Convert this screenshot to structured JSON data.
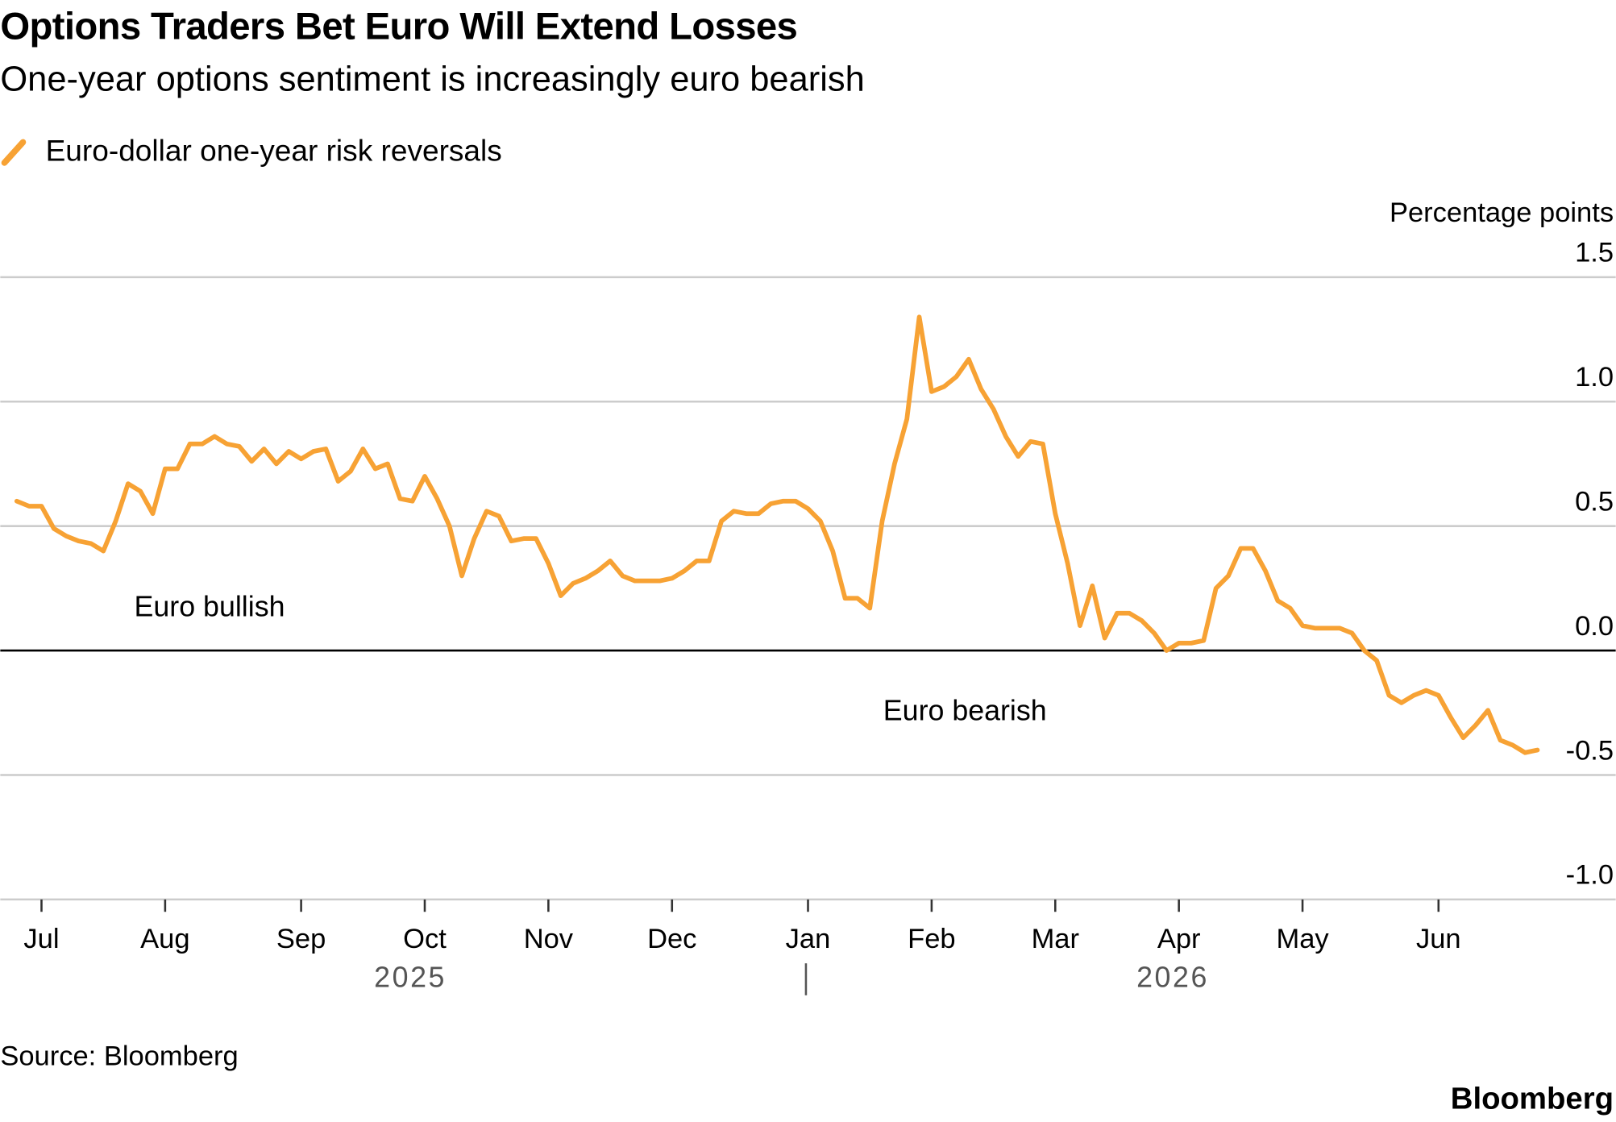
{
  "chart_data": {
    "type": "line",
    "title": "Options Traders Bet Euro Will Extend Losses",
    "subtitle": "One-year options sentiment is increasingly euro bearish",
    "y_label": "Percentage points",
    "categories": [
      null,
      null,
      "Jul",
      null,
      null,
      null,
      null,
      null,
      null,
      null,
      null,
      null,
      "Aug",
      null,
      null,
      null,
      null,
      null,
      null,
      null,
      null,
      null,
      null,
      "Sep",
      null,
      null,
      null,
      null,
      null,
      null,
      null,
      null,
      null,
      "Oct",
      null,
      null,
      null,
      null,
      null,
      null,
      null,
      null,
      null,
      "Nov",
      null,
      null,
      null,
      null,
      null,
      null,
      null,
      null,
      null,
      "Dec",
      null,
      null,
      null,
      null,
      null,
      null,
      null,
      null,
      null,
      null,
      "Jan",
      null,
      null,
      null,
      null,
      null,
      null,
      null,
      null,
      null,
      "Feb",
      null,
      null,
      null,
      null,
      null,
      null,
      null,
      null,
      null,
      "Mar",
      null,
      null,
      null,
      null,
      null,
      null,
      null,
      null,
      null,
      "Apr",
      null,
      null,
      null,
      null,
      null,
      null,
      null,
      null,
      null,
      "May",
      null,
      null,
      null,
      null,
      null,
      null,
      null,
      null,
      null,
      null,
      "Jun",
      null,
      null,
      null,
      null,
      null,
      null,
      null,
      null
    ],
    "years": [
      "2025",
      "2026"
    ],
    "series": [
      {
        "name": "Euro-dollar one-year risk reversals",
        "color": "#f7a234",
        "values": [
          0.6,
          0.58,
          0.58,
          0.49,
          0.46,
          0.44,
          0.43,
          0.4,
          0.52,
          0.67,
          0.64,
          0.55,
          0.73,
          0.73,
          0.83,
          0.83,
          0.86,
          0.83,
          0.82,
          0.76,
          0.81,
          0.75,
          0.8,
          0.77,
          0.8,
          0.81,
          0.68,
          0.72,
          0.81,
          0.73,
          0.75,
          0.61,
          0.6,
          0.7,
          0.61,
          0.5,
          0.3,
          0.45,
          0.56,
          0.54,
          0.44,
          0.45,
          0.45,
          0.35,
          0.22,
          0.27,
          0.29,
          0.32,
          0.36,
          0.3,
          0.28,
          0.28,
          0.28,
          0.29,
          0.32,
          0.36,
          0.36,
          0.52,
          0.56,
          0.55,
          0.55,
          0.59,
          0.6,
          0.6,
          0.57,
          0.52,
          0.4,
          0.21,
          0.21,
          0.17,
          0.52,
          0.75,
          0.93,
          1.34,
          1.04,
          1.06,
          1.1,
          1.17,
          1.05,
          0.97,
          0.86,
          0.78,
          0.84,
          0.83,
          0.55,
          0.35,
          0.1,
          0.26,
          0.05,
          0.15,
          0.15,
          0.12,
          0.07,
          0.0,
          0.03,
          0.03,
          0.04,
          0.25,
          0.3,
          0.41,
          0.41,
          0.32,
          0.2,
          0.17,
          0.1,
          0.09,
          0.09,
          0.09,
          0.07,
          0.0,
          -0.04,
          -0.18,
          -0.21,
          -0.18,
          -0.16,
          -0.18,
          -0.27,
          -0.35,
          -0.3,
          -0.24,
          -0.36,
          -0.38,
          -0.41,
          -0.4
        ]
      }
    ],
    "ylim": [
      -1.0,
      1.5
    ],
    "yticks": [
      {
        "value": -1,
        "label": "-1.0"
      },
      -0.5,
      {
        "value": 0,
        "label": "0.0"
      },
      0.5,
      {
        "value": 1,
        "label": "1.0"
      },
      1.5
    ],
    "grid": true,
    "annotations": [
      "Euro bullish",
      "Euro bearish"
    ],
    "source": "Source: Bloomberg",
    "brand": "Bloomberg"
  }
}
